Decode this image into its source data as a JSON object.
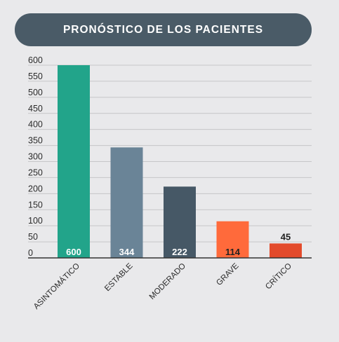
{
  "chart_data": {
    "type": "bar",
    "title": "PRONÓSTICO DE LOS PACIENTES",
    "categories": [
      "ASINTOMÁTICO",
      "ESTABLE",
      "MODERADO",
      "GRAVE",
      "CRÍTICO"
    ],
    "values": [
      600,
      344,
      222,
      114,
      45
    ],
    "ylim": [
      0,
      600
    ],
    "yticks": [
      0,
      50,
      100,
      150,
      200,
      250,
      300,
      350,
      400,
      450,
      500,
      550,
      600
    ],
    "grid": true,
    "bar_colors": [
      "#22a48a",
      "#6a8497",
      "#465866",
      "#ff6a3b",
      "#e34a2b"
    ],
    "label_colors": [
      "#ffffff",
      "#ffffff",
      "#ffffff",
      "#222222",
      "#222222"
    ],
    "title_bg": "#4a5b67",
    "background": "#e9e9eb"
  }
}
